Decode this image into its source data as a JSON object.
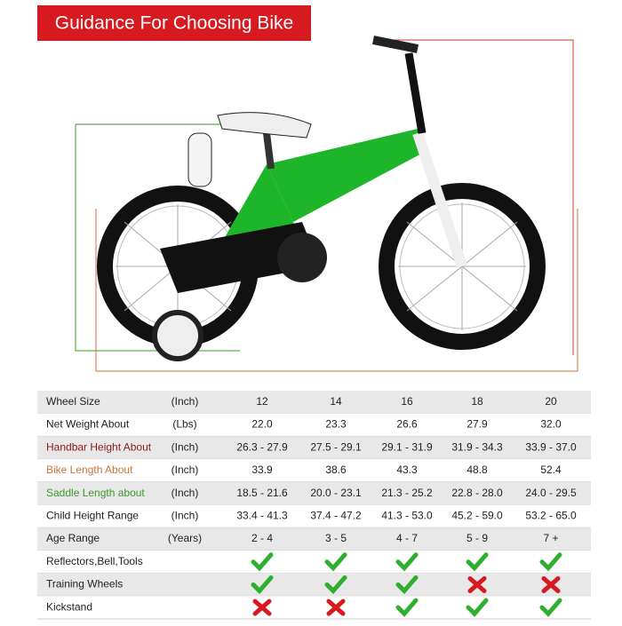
{
  "header": {
    "title": "Guidance For Choosing Bike"
  },
  "table": {
    "rows": [
      {
        "label": "Wheel Size",
        "unit": "(Inch)",
        "cells": [
          "12",
          "14",
          "16",
          "18",
          "20"
        ],
        "color": "#222222"
      },
      {
        "label": "Net Weight About",
        "unit": "(Lbs)",
        "cells": [
          "22.0",
          "23.3",
          "26.6",
          "27.9",
          "32.0"
        ],
        "color": "#222222"
      },
      {
        "label": "Handbar Height About",
        "unit": "(Inch)",
        "cells": [
          "26.3 - 27.9",
          "27.5 - 29.1",
          "29.1 - 31.9",
          "31.9 - 34.3",
          "33.9 - 37.0"
        ],
        "color": "#8b1a1a"
      },
      {
        "label": "Bike Length About",
        "unit": "(Inch)",
        "cells": [
          "33.9",
          "38.6",
          "43.3",
          "48.8",
          "52.4"
        ],
        "color": "#c8733a"
      },
      {
        "label": "Saddle Length about",
        "unit": "(Inch)",
        "cells": [
          "18.5 - 21.6",
          "20.0 - 23.1",
          "21.3 - 25.2",
          "22.8 - 28.0",
          "24.0 - 29.5"
        ],
        "color": "#3a9a2a"
      },
      {
        "label": "Child Height Range",
        "unit": "(Inch)",
        "cells": [
          "33.4 - 41.3",
          "37.4 - 47.2",
          "41.3 - 53.0",
          "45.2 - 59.0",
          "53.2 - 65.0"
        ],
        "color": "#222222"
      },
      {
        "label": "Age Range",
        "unit": "(Years)",
        "cells": [
          "2 - 4",
          "3 - 5",
          "4 - 7",
          "5 - 9",
          "7 +"
        ],
        "color": "#222222"
      },
      {
        "label": "Reflectors,Bell,Tools",
        "cells": [
          true,
          true,
          true,
          true,
          true
        ],
        "color": "#222222"
      },
      {
        "label": "Training Wheels",
        "cells": [
          true,
          true,
          true,
          false,
          false
        ],
        "color": "#222222"
      },
      {
        "label": "Kickstand",
        "cells": [
          false,
          false,
          true,
          true,
          true
        ],
        "color": "#222222"
      }
    ]
  }
}
